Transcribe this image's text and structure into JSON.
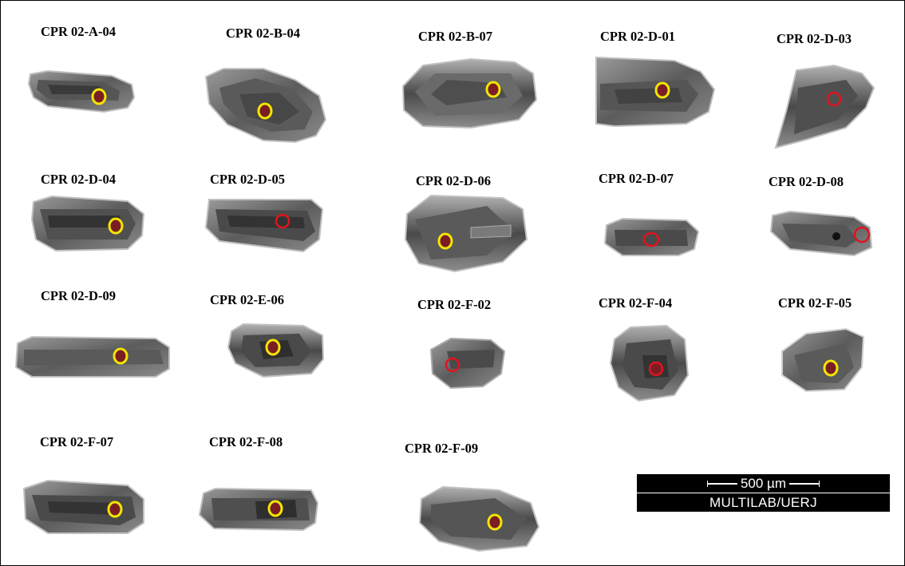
{
  "grains": [
    {
      "label": "CPR 02-A-04",
      "ring": "yellow"
    },
    {
      "label": "CPR 02-B-04",
      "ring": "yellow"
    },
    {
      "label": "CPR 02-B-07",
      "ring": "yellow"
    },
    {
      "label": "CPR 02-D-01",
      "ring": "yellow"
    },
    {
      "label": "CPR 02-D-03",
      "ring": "red"
    },
    {
      "label": "CPR 02-D-04",
      "ring": "yellow"
    },
    {
      "label": "CPR 02-D-05",
      "ring": "red"
    },
    {
      "label": "CPR 02-D-06",
      "ring": "yellow"
    },
    {
      "label": "CPR 02-D-07",
      "ring": "red"
    },
    {
      "label": "CPR 02-D-08",
      "ring": "red"
    },
    {
      "label": "CPR 02-D-09",
      "ring": "yellow"
    },
    {
      "label": "CPR 02-E-06",
      "ring": "yellow"
    },
    {
      "label": "CPR 02-F-02",
      "ring": "red"
    },
    {
      "label": "CPR 02-F-04",
      "ring": "red"
    },
    {
      "label": "CPR 02-F-05",
      "ring": "yellow"
    },
    {
      "label": "CPR 02-F-07",
      "ring": "yellow"
    },
    {
      "label": "CPR 02-F-08",
      "ring": "yellow"
    },
    {
      "label": "CPR 02-F-09",
      "ring": "yellow"
    }
  ],
  "scale_bar": {
    "length_text": "500 µm",
    "lab_text": "MULTILAB/UERJ"
  },
  "colors": {
    "grain_dark": "#3c3c3c",
    "grain_mid": "#6e6e6e",
    "grain_light": "#a8a8a8",
    "ring_yellow": "#f2e600",
    "ring_red": "#e0141e",
    "spot_fill": "#7a1e24"
  }
}
